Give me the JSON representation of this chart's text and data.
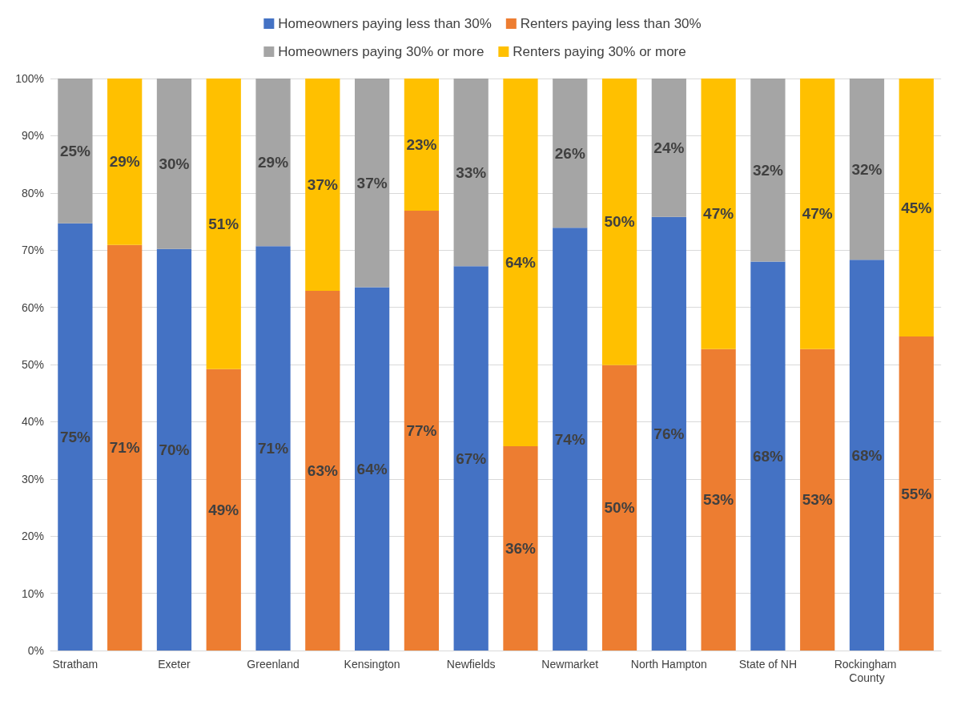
{
  "chart_data": {
    "type": "bar",
    "stacked": true,
    "categories": [
      "Stratham",
      null,
      "Exeter",
      null,
      "Greenland",
      null,
      "Kensington",
      null,
      "Newfields",
      null,
      "Newmarket",
      null,
      "North Hampton",
      null,
      "State of NH",
      null,
      "Rockingham County",
      null
    ],
    "series": [
      {
        "name": "Homeowners paying less than 30%",
        "color": "#4472c4",
        "values": [
          74.7,
          null,
          70.2,
          null,
          70.7,
          null,
          63.5,
          null,
          67.2,
          null,
          73.9,
          null,
          75.8,
          null,
          68.0,
          null,
          68.3,
          null
        ],
        "value_labels": [
          "75%",
          null,
          "70%",
          null,
          "71%",
          null,
          "64%",
          null,
          "67%",
          null,
          "74%",
          null,
          "76%",
          null,
          "68%",
          null,
          "68%",
          null
        ]
      },
      {
        "name": "Renters paying less than 30%",
        "color": "#ed7d31",
        "values": [
          null,
          70.9,
          null,
          49.2,
          null,
          62.9,
          null,
          76.9,
          null,
          35.7,
          null,
          49.9,
          null,
          52.7,
          null,
          52.7,
          null,
          54.9
        ],
        "value_labels": [
          null,
          "71%",
          null,
          "49%",
          null,
          "63%",
          null,
          "77%",
          null,
          "36%",
          null,
          "50%",
          null,
          "53%",
          null,
          "53%",
          null,
          "55%"
        ]
      },
      {
        "name": "Homeowners paying 30% or more",
        "color": "#a5a5a5",
        "values": [
          25.3,
          null,
          29.8,
          null,
          29.3,
          null,
          36.5,
          null,
          32.8,
          null,
          26.1,
          null,
          24.2,
          null,
          32.0,
          null,
          31.7,
          null
        ],
        "value_labels": [
          "25%",
          null,
          "30%",
          null,
          "29%",
          null,
          "37%",
          null,
          "33%",
          null,
          "26%",
          null,
          "24%",
          null,
          "32%",
          null,
          "32%",
          null
        ]
      },
      {
        "name": "Renters paying 30% or more",
        "color": "#ffc000",
        "values": [
          null,
          29.1,
          null,
          50.8,
          null,
          37.1,
          null,
          23.1,
          null,
          64.3,
          null,
          50.1,
          null,
          47.3,
          null,
          47.3,
          null,
          45.1
        ],
        "value_labels": [
          null,
          "29%",
          null,
          "51%",
          null,
          "37%",
          null,
          "23%",
          null,
          "64%",
          null,
          "50%",
          null,
          "47%",
          null,
          "47%",
          null,
          "45%"
        ]
      }
    ],
    "ylim": [
      0,
      100
    ],
    "yticks": [
      {
        "value": 0,
        "label": "0%"
      },
      {
        "value": 10,
        "label": "10%"
      },
      {
        "value": 20,
        "label": "20%"
      },
      {
        "value": 30,
        "label": "30%"
      },
      {
        "value": 40,
        "label": "40%"
      },
      {
        "value": 50,
        "label": "50%"
      },
      {
        "value": 60,
        "label": "60%"
      },
      {
        "value": 70,
        "label": "70%"
      },
      {
        "value": 80,
        "label": "80%"
      },
      {
        "value": 90,
        "label": "90%"
      },
      {
        "value": 100,
        "label": "100%"
      }
    ],
    "grid": "y",
    "legend": "top"
  }
}
